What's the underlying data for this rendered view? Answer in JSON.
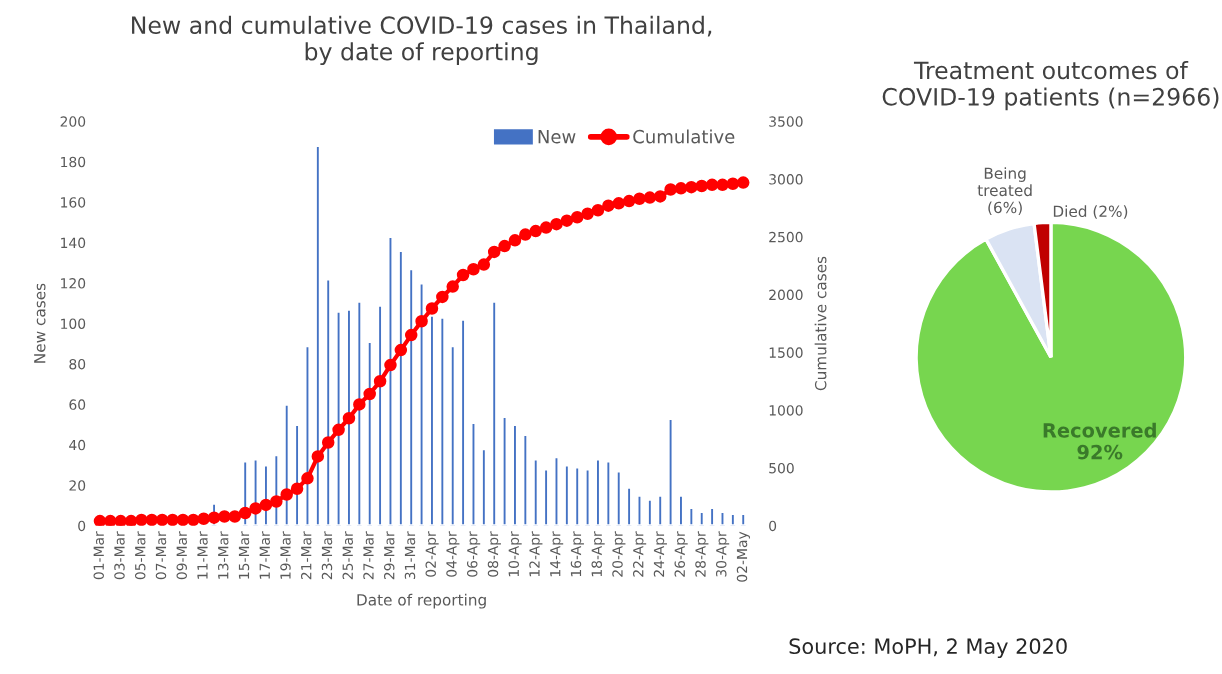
{
  "chart_data": [
    {
      "type": "bar",
      "title": "New and cumulative COVID-19 cases in Thailand,\nby date of reporting",
      "xlabel": "Date of reporting",
      "ylabel": "New cases",
      "y2label": "Cumulative cases",
      "categories": [
        "01-Mar",
        null,
        "03-Mar",
        null,
        "05-Mar",
        null,
        "07-Mar",
        null,
        "09-Mar",
        null,
        "11-Mar",
        null,
        "13-Mar",
        null,
        "15-Mar",
        null,
        "17-Mar",
        null,
        "19-Mar",
        null,
        "21-Mar",
        null,
        "23-Mar",
        null,
        "25-Mar",
        null,
        "27-Mar",
        null,
        "29-Mar",
        null,
        "31-Mar",
        null,
        "02-Apr",
        null,
        "04-Apr",
        null,
        "06-Apr",
        null,
        "08-Apr",
        null,
        "10-Apr",
        null,
        "12-Apr",
        null,
        "14-Apr",
        null,
        "16-Apr",
        null,
        "18-Apr",
        null,
        "20-Apr",
        null,
        "22-Apr",
        null,
        "24-Apr",
        null,
        "26-Apr",
        null,
        "28-Apr",
        null,
        "30-Apr",
        null,
        "02-May"
      ],
      "series": [
        {
          "name": "New",
          "type": "bar",
          "color": "#4472c4",
          "values": [
            null,
            null,
            null,
            null,
            null,
            null,
            null,
            null,
            null,
            null,
            null,
            11,
            null,
            null,
            32,
            33,
            30,
            35,
            60,
            50,
            89,
            188,
            122,
            106,
            107,
            111,
            91,
            109,
            143,
            136,
            127,
            120,
            104,
            103,
            89,
            102,
            51,
            38,
            111,
            54,
            50,
            45,
            33,
            28,
            34,
            30,
            29,
            28,
            33,
            32,
            27,
            19,
            15,
            13,
            15,
            53,
            15,
            9,
            7,
            9,
            7,
            6,
            6
          ]
        },
        {
          "name": "Cumulative",
          "type": "line",
          "axis": "y2",
          "color": "#ff0000",
          "marker": "circle",
          "line_style": "solid",
          "values": [
            40,
            40,
            40,
            40,
            50,
            50,
            50,
            50,
            50,
            50,
            60,
            70,
            80,
            80,
            110,
            150,
            180,
            210,
            270,
            320,
            410,
            600,
            720,
            830,
            930,
            1050,
            1140,
            1250,
            1390,
            1520,
            1650,
            1770,
            1880,
            1980,
            2070,
            2170,
            2220,
            2260,
            2370,
            2420,
            2470,
            2520,
            2550,
            2580,
            2610,
            2640,
            2670,
            2700,
            2730,
            2770,
            2790,
            2810,
            2830,
            2840,
            2850,
            2910,
            2920,
            2930,
            2940,
            2950,
            2950,
            2960,
            2970
          ]
        }
      ],
      "ylim": [
        0,
        200
      ],
      "yticks": [
        0,
        20,
        40,
        60,
        80,
        100,
        120,
        140,
        160,
        180,
        200
      ],
      "y2lim": [
        0,
        3500
      ],
      "y2ticks": [
        0,
        500,
        1000,
        1500,
        2000,
        2500,
        3000,
        3500
      ],
      "legend": "top right",
      "grid": false
    },
    {
      "type": "pie",
      "title": "Treatment outcomes of\nCOVID-19 patients (n=2966)",
      "categories": [
        "Recovered",
        "Being\ntreated",
        "Died"
      ],
      "values": [
        92,
        6,
        2
      ],
      "value_labels": [
        "92%",
        "(6%)",
        "(2%)"
      ],
      "colors": [
        "#77d64f",
        "#dae3f3",
        "#c00000"
      ],
      "annotations": [
        "Source: MoPH, 2 May 2020"
      ]
    }
  ]
}
